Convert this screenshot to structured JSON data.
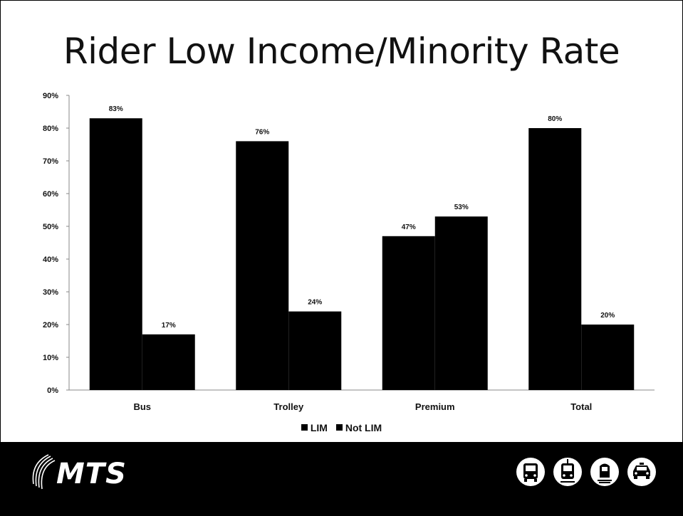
{
  "slide": {
    "title": "Rider Low Income/Minority Rate",
    "logo_text": "MTS",
    "mode_icons": [
      "bus-icon",
      "trolley-icon",
      "train-icon",
      "taxi-icon"
    ],
    "colors": {
      "bars": "#000000",
      "footer": "#000000",
      "background": "#ffffff"
    }
  },
  "chart_data": {
    "type": "bar",
    "categories": [
      "Bus",
      "Trolley",
      "Premium",
      "Total"
    ],
    "series": [
      {
        "name": "LIM",
        "values": [
          83,
          76,
          47,
          80
        ],
        "labels": [
          "83%",
          "76%",
          "47%",
          "80%"
        ]
      },
      {
        "name": "Not LIM",
        "values": [
          17,
          24,
          53,
          20
        ],
        "labels": [
          "17%",
          "24%",
          "53%",
          "20%"
        ]
      }
    ],
    "y_ticks": [
      "0%",
      "10%",
      "20%",
      "30%",
      "40%",
      "50%",
      "60%",
      "70%",
      "80%",
      "90%"
    ],
    "ylim": [
      0,
      90
    ],
    "legend_position": "bottom",
    "grid": false
  }
}
